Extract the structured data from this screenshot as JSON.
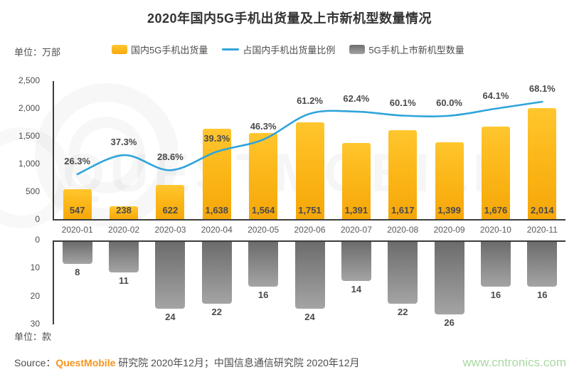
{
  "title": "2020年国内5G手机出货量及上市新机型数量情况",
  "units": {
    "top": "单位：万部",
    "bottom": "单位：款"
  },
  "legend": {
    "items": [
      {
        "label": "国内5G手机出货量",
        "type": "bar",
        "color": "#FBB415"
      },
      {
        "label": "占国内手机出货量比例",
        "type": "line",
        "color": "#2FA4DB"
      },
      {
        "label": "5G手机上市新机型数量",
        "type": "bar",
        "color": "#8C8C8C"
      }
    ]
  },
  "watermark_text": "QUESTMOBILE",
  "colors": {
    "bar_yellow": "#FBB415",
    "line_blue": "#2FA4DB",
    "bar_gray": "#8C8C8C",
    "brand_orange": "#F7941D",
    "site_green": "#ABD8A4",
    "text_dark": "#4D4D4D",
    "axis_dark": "#3D3D3D"
  },
  "footer": {
    "source_prefix": "Source：",
    "brand": "QuestMobile",
    "source_suffix": " 研究院 2020年12月；中国信息通信研究院 2020年12月",
    "site": "www.cntronics.com"
  },
  "chart_data": [
    {
      "type": "bar",
      "title": "2020年国内5G手机出货量及占国内手机出货量比例",
      "categories": [
        "2020-01",
        "2020-02",
        "2020-03",
        "2020-04",
        "2020-05",
        "2020-06",
        "2020-07",
        "2020-08",
        "2020-09",
        "2020-10",
        "2020-11"
      ],
      "series": [
        {
          "name": "国内5G手机出货量",
          "type": "bar",
          "unit": "万部",
          "values": [
            547,
            238,
            622,
            1638,
            1564,
            1751,
            1391,
            1617,
            1399,
            1676,
            2014
          ]
        },
        {
          "name": "占国内手机出货量比例",
          "type": "line",
          "unit": "%",
          "values": [
            26.3,
            37.3,
            28.6,
            39.3,
            46.3,
            61.2,
            62.4,
            60.1,
            60.0,
            64.1,
            68.1
          ]
        }
      ],
      "ylabel": "单位：万部",
      "ylim": [
        0,
        2500
      ],
      "yticks": [
        0,
        500,
        1000,
        1500,
        2000,
        2500
      ],
      "y2lim": [
        0,
        80
      ],
      "grid": false,
      "legend_position": "top"
    },
    {
      "type": "bar",
      "title": "5G手机上市新机型数量",
      "categories": [
        "2020-01",
        "2020-02",
        "2020-03",
        "2020-04",
        "2020-05",
        "2020-06",
        "2020-07",
        "2020-08",
        "2020-09",
        "2020-10",
        "2020-11"
      ],
      "values": [
        8,
        11,
        24,
        22,
        16,
        24,
        14,
        22,
        26,
        16,
        16
      ],
      "ylabel": "单位：款",
      "ylim": [
        0,
        30
      ],
      "yticks": [
        0,
        10,
        20,
        30
      ],
      "inverted_axis": true,
      "grid": false
    }
  ]
}
